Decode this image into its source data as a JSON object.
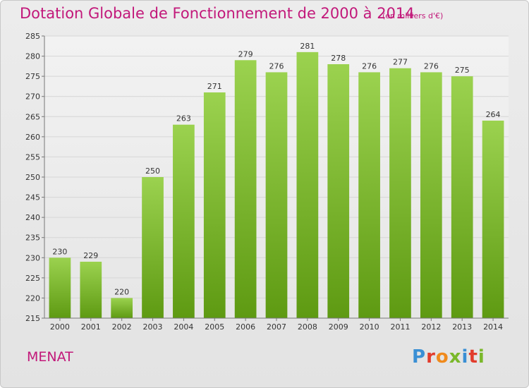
{
  "header": {
    "title": "Dotation Globale de Fonctionnement de 2000 à 2014",
    "subtitle": "(en milliers d'€)"
  },
  "footer": {
    "commune": "MENAT",
    "logo_text": "Proxiti",
    "logo_colors": [
      "#3a8fd4",
      "#e23c2c",
      "#f08a1c",
      "#7ab82a",
      "#3a8fd4",
      "#e23c2c",
      "#7ab82a"
    ]
  },
  "colors": {
    "title": "#c2187a",
    "bar_light": "#9bd24f",
    "bar_dark": "#5e9a12",
    "grid": "#d6d6d6",
    "axis": "#777777"
  },
  "chart_data": {
    "type": "bar",
    "categories": [
      "2000",
      "2001",
      "2002",
      "2003",
      "2004",
      "2005",
      "2006",
      "2007",
      "2008",
      "2009",
      "2010",
      "2011",
      "2012",
      "2013",
      "2014"
    ],
    "values": [
      230,
      229,
      220,
      250,
      263,
      271,
      279,
      276,
      281,
      278,
      276,
      277,
      276,
      275,
      264
    ],
    "data_labels": [
      "230",
      "229",
      "220",
      "250",
      "263",
      "271",
      "279",
      "276",
      "281",
      "278",
      "276",
      "277",
      "276",
      "275",
      "264"
    ],
    "ylim": [
      215,
      285
    ],
    "yticks": [
      215,
      220,
      225,
      230,
      235,
      240,
      245,
      250,
      255,
      260,
      265,
      270,
      275,
      280,
      285
    ],
    "grid": true,
    "legend": "none"
  }
}
